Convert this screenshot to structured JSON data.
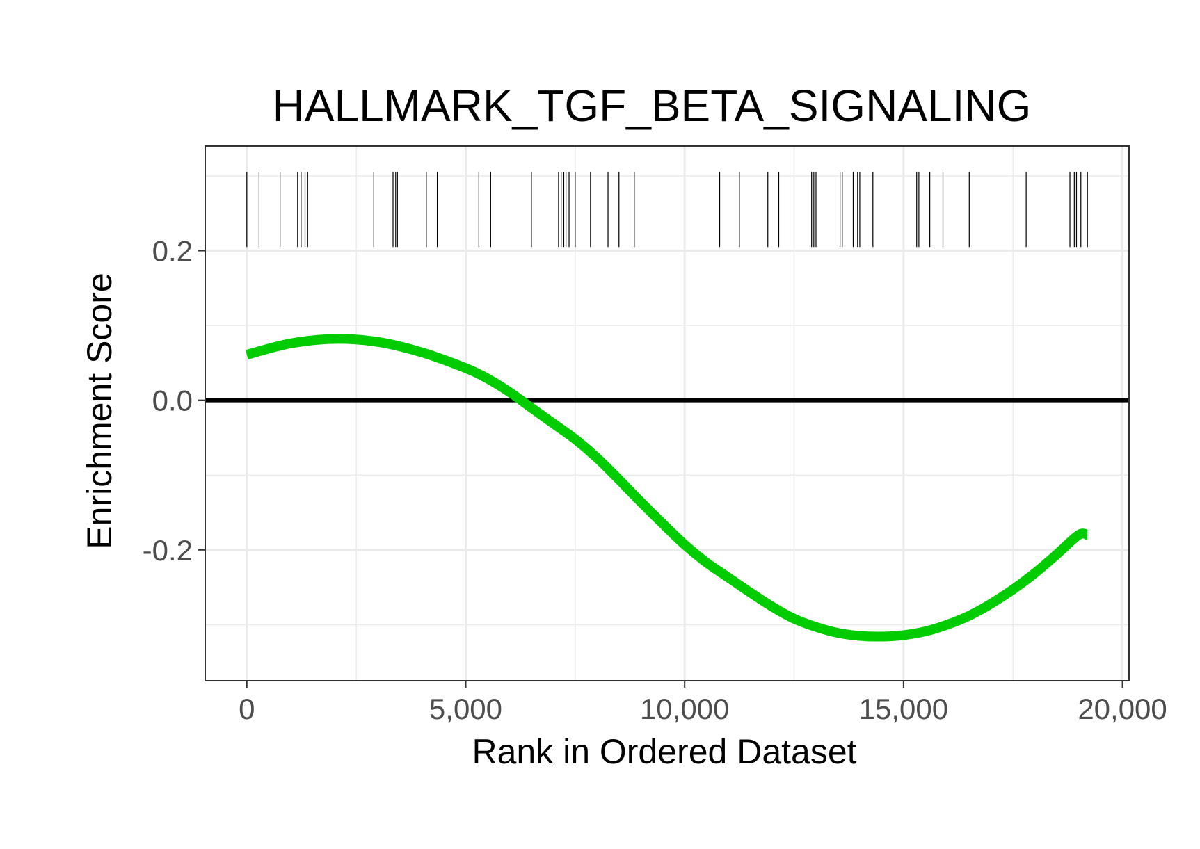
{
  "chart_data": {
    "type": "line",
    "title": "HALLMARK_TGF_BETA_SIGNALING",
    "xlabel": "Rank in Ordered Dataset",
    "ylabel": "Enrichment Score",
    "xlim": [
      -950,
      20150
    ],
    "ylim": [
      -0.375,
      0.34
    ],
    "x_ticks": [
      0,
      5000,
      10000,
      15000,
      20000
    ],
    "x_tick_labels": [
      "0",
      "5,000",
      "10,000",
      "15,000",
      "20,000"
    ],
    "x_minor_ticks": [
      2500,
      7500,
      12500,
      17500
    ],
    "y_ticks": [
      -0.2,
      0.0,
      0.2
    ],
    "y_tick_labels": [
      "-0.2",
      "0.0",
      "0.2"
    ],
    "y_minor_ticks": [
      -0.3,
      -0.1,
      0.1,
      0.3
    ],
    "grid": true,
    "reference_line": {
      "y": 0,
      "color": "#000000"
    },
    "series": [
      {
        "color": "#00cc00",
        "x": [
          0,
          1000,
          2000,
          3000,
          4000,
          5000,
          5500,
          6000,
          6500,
          7000,
          7500,
          8000,
          8500,
          9000,
          9500,
          10000,
          10500,
          11000,
          11500,
          12000,
          12500,
          13000,
          13500,
          14000,
          14500,
          15000,
          15500,
          16000,
          16500,
          17000,
          17500,
          18000,
          18500,
          19000,
          19200
        ],
        "y": [
          0.061,
          0.076,
          0.082,
          0.078,
          0.064,
          0.043,
          0.029,
          0.011,
          -0.01,
          -0.031,
          -0.052,
          -0.077,
          -0.106,
          -0.136,
          -0.165,
          -0.193,
          -0.217,
          -0.237,
          -0.257,
          -0.276,
          -0.292,
          -0.303,
          -0.311,
          -0.315,
          -0.316,
          -0.314,
          -0.309,
          -0.3,
          -0.288,
          -0.272,
          -0.253,
          -0.231,
          -0.206,
          -0.18,
          -0.18
        ]
      }
    ],
    "rug": {
      "y_range": [
        0.205,
        0.305
      ],
      "color": "#000000",
      "positions": [
        0,
        280,
        760,
        1160,
        1240,
        1330,
        1390,
        2900,
        3340,
        3400,
        3440,
        4100,
        4350,
        5300,
        5570,
        6500,
        7120,
        7180,
        7240,
        7290,
        7360,
        7500,
        7850,
        8250,
        8500,
        8850,
        10800,
        11250,
        11900,
        12150,
        12900,
        12950,
        13000,
        13550,
        13600,
        13850,
        13950,
        14000,
        14300,
        15300,
        15350,
        15600,
        15900,
        16500,
        17800,
        18800,
        18900,
        18950,
        19050,
        19200
      ]
    }
  }
}
